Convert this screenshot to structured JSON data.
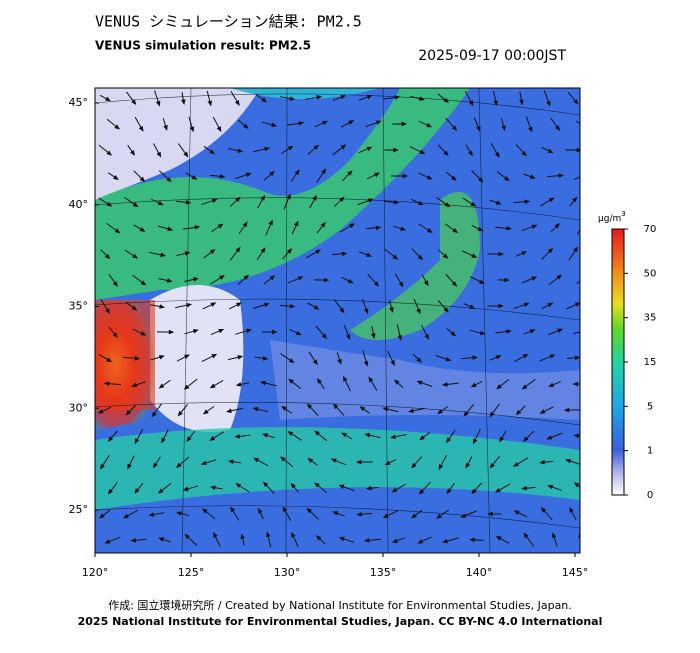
{
  "header": {
    "title": "VENUS シミュレーション結果: PM2.5",
    "subtitle": "VENUS simulation result: PM2.5",
    "timestamp": "2025-09-17 00:00JST"
  },
  "map": {
    "lat_ticks": [
      {
        "value": 45,
        "label": "45°"
      },
      {
        "value": 40,
        "label": "40°"
      },
      {
        "value": 35,
        "label": "35°"
      },
      {
        "value": 30,
        "label": "30°"
      },
      {
        "value": 25,
        "label": "25°"
      }
    ],
    "lon_ticks": [
      {
        "value": 120,
        "label": "120°"
      },
      {
        "value": 125,
        "label": "125°"
      },
      {
        "value": 130,
        "label": "130°"
      },
      {
        "value": 135,
        "label": "135°"
      },
      {
        "value": 140,
        "label": "140°"
      },
      {
        "value": 145,
        "label": "145°"
      }
    ]
  },
  "colorbar": {
    "unit": "μg/m",
    "unit_sup": "3",
    "ticks": [
      0,
      1,
      5,
      15,
      35,
      50,
      70
    ]
  },
  "footer": {
    "credit": "作成: 国立環境研究所 / Created by National Institute for Environmental Studies, Japan.",
    "copyright": "2025 National Institute for Environmental Studies, Japan. CC BY-NC 4.0 International"
  }
}
